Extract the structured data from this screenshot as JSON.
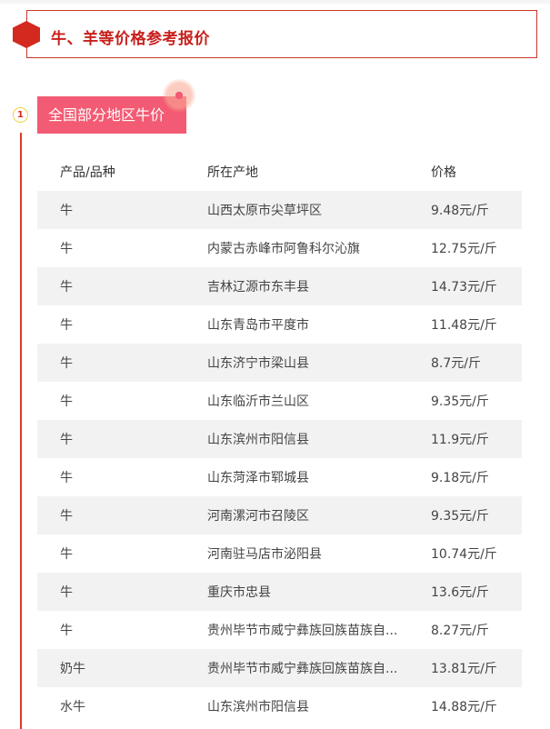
{
  "title": "牛、羊等价格参考报价",
  "section": {
    "number": "1",
    "label": "全国部分地区牛价"
  },
  "table": {
    "headers": [
      "产品/品种",
      "所在产地",
      "价格"
    ],
    "rows": [
      [
        "牛",
        "山西太原市尖草坪区",
        "9.48元/斤"
      ],
      [
        "牛",
        "内蒙古赤峰市阿鲁科尔沁旗",
        "12.75元/斤"
      ],
      [
        "牛",
        "吉林辽源市东丰县",
        "14.73元/斤"
      ],
      [
        "牛",
        "山东青岛市平度市",
        "11.48元/斤"
      ],
      [
        "牛",
        "山东济宁市梁山县",
        "8.7元/斤"
      ],
      [
        "牛",
        "山东临沂市兰山区",
        "9.35元/斤"
      ],
      [
        "牛",
        "山东滨州市阳信县",
        "11.9元/斤"
      ],
      [
        "牛",
        "山东菏泽市郓城县",
        "9.18元/斤"
      ],
      [
        "牛",
        "河南漯河市召陵区",
        "9.35元/斤"
      ],
      [
        "牛",
        "河南驻马店市泌阳县",
        "10.74元/斤"
      ],
      [
        "牛",
        "重庆市忠县",
        "13.6元/斤"
      ],
      [
        "牛",
        "贵州毕节市威宁彝族回族苗族自...",
        "8.27元/斤"
      ],
      [
        "奶牛",
        "贵州毕节市威宁彝族回族苗族自...",
        "13.81元/斤"
      ],
      [
        "水牛",
        "山东滨州市阳信县",
        "14.88元/斤"
      ]
    ]
  }
}
